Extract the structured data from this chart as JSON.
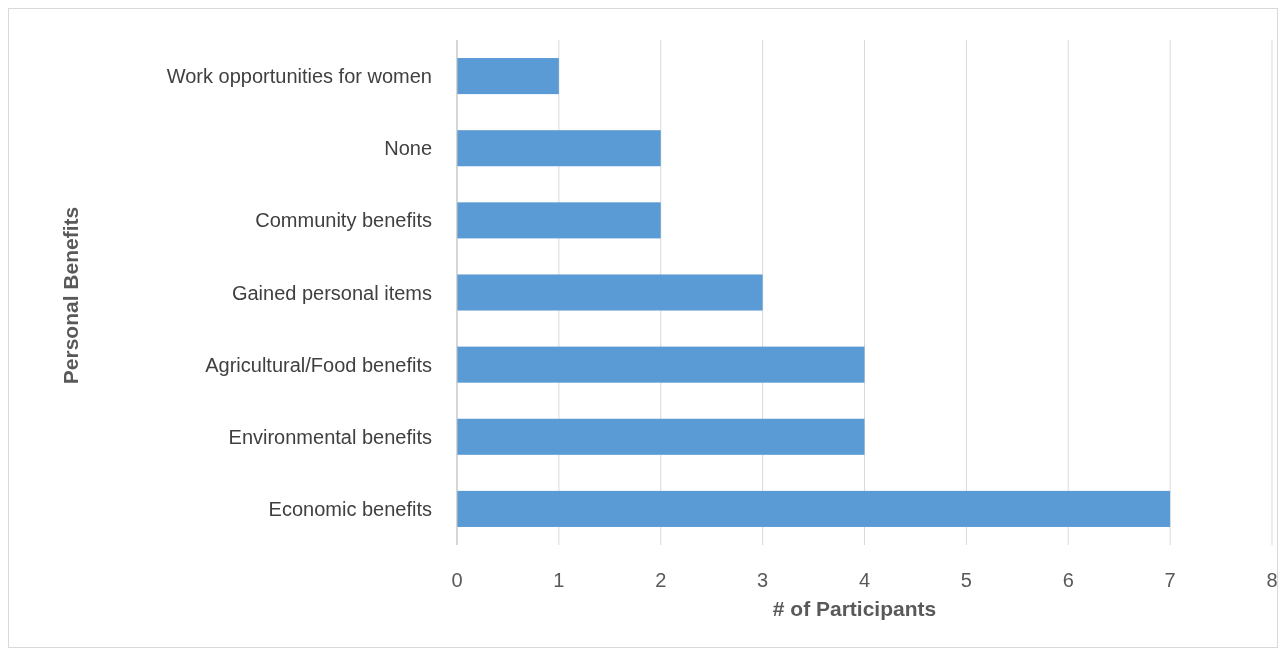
{
  "chart_data": {
    "type": "bar",
    "orientation": "horizontal",
    "ylabel": "Personal Benefits",
    "xlabel": "# of Participants",
    "categories": [
      "Work opportunities for women",
      "None",
      "Community benefits",
      "Gained personal items",
      "Agricultural/Food benefits",
      "Environmental benefits",
      "Economic benefits"
    ],
    "values": [
      1,
      2,
      2,
      3,
      4,
      4,
      7
    ],
    "color": "#5b9bd5",
    "xlim": [
      0,
      8
    ],
    "xticks": [
      0,
      1,
      2,
      3,
      4,
      5,
      6,
      7,
      8
    ],
    "grid": "x"
  }
}
